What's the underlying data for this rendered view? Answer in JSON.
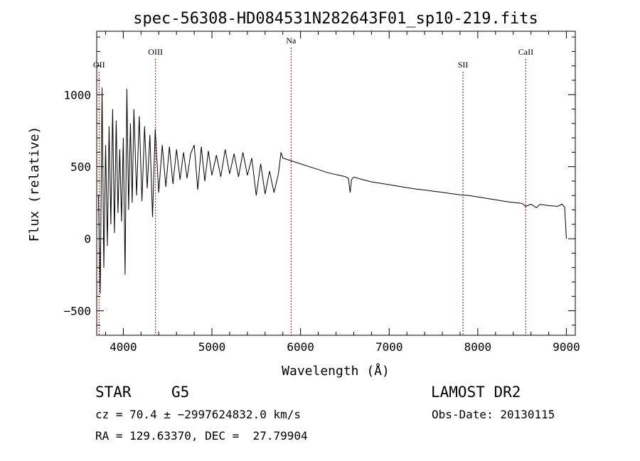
{
  "chart_data": {
    "type": "line",
    "title": "spec-56308-HD084531N282643F01_sp10-219.fits",
    "xlabel": "Wavelength (Å)",
    "ylabel": "Flux (relative)",
    "xlim": [
      3700,
      9100
    ],
    "ylim": [
      -670,
      1440
    ],
    "x_ticks": [
      4000,
      5000,
      6000,
      7000,
      8000,
      9000
    ],
    "y_ticks": [
      -500,
      0,
      500,
      1000
    ],
    "grid": false,
    "series_color": "#000000",
    "line_color": "#aa0000",
    "lines": [
      {
        "label": "OII",
        "x": 3727
      },
      {
        "label": "OIII",
        "x": 4363
      },
      {
        "label": "Na",
        "x": 5893
      },
      {
        "label": "SII",
        "x": 7833
      },
      {
        "label": "CaII",
        "x": 8542
      }
    ],
    "spectrum": [
      [
        3720,
        300
      ],
      [
        3740,
        -380
      ],
      [
        3760,
        1050
      ],
      [
        3780,
        -200
      ],
      [
        3800,
        650
      ],
      [
        3820,
        -50
      ],
      [
        3840,
        780
      ],
      [
        3860,
        100
      ],
      [
        3880,
        900
      ],
      [
        3900,
        40
      ],
      [
        3920,
        820
      ],
      [
        3940,
        180
      ],
      [
        3960,
        620
      ],
      [
        3980,
        120
      ],
      [
        4000,
        700
      ],
      [
        4020,
        -250
      ],
      [
        4040,
        1040
      ],
      [
        4060,
        200
      ],
      [
        4080,
        800
      ],
      [
        4100,
        250
      ],
      [
        4120,
        900
      ],
      [
        4150,
        300
      ],
      [
        4180,
        850
      ],
      [
        4210,
        260
      ],
      [
        4240,
        780
      ],
      [
        4270,
        350
      ],
      [
        4300,
        720
      ],
      [
        4330,
        150
      ],
      [
        4360,
        760
      ],
      [
        4400,
        320
      ],
      [
        4440,
        650
      ],
      [
        4480,
        360
      ],
      [
        4520,
        640
      ],
      [
        4560,
        380
      ],
      [
        4600,
        620
      ],
      [
        4640,
        410
      ],
      [
        4680,
        600
      ],
      [
        4720,
        420
      ],
      [
        4760,
        590
      ],
      [
        4800,
        650
      ],
      [
        4840,
        340
      ],
      [
        4880,
        640
      ],
      [
        4920,
        400
      ],
      [
        4960,
        610
      ],
      [
        5000,
        440
      ],
      [
        5050,
        580
      ],
      [
        5100,
        430
      ],
      [
        5150,
        620
      ],
      [
        5200,
        450
      ],
      [
        5250,
        590
      ],
      [
        5300,
        430
      ],
      [
        5350,
        600
      ],
      [
        5400,
        440
      ],
      [
        5450,
        560
      ],
      [
        5500,
        300
      ],
      [
        5550,
        520
      ],
      [
        5600,
        310
      ],
      [
        5650,
        470
      ],
      [
        5700,
        320
      ],
      [
        5750,
        450
      ],
      [
        5780,
        600
      ],
      [
        5800,
        560
      ],
      [
        5900,
        540
      ],
      [
        6000,
        520
      ],
      [
        6100,
        500
      ],
      [
        6200,
        480
      ],
      [
        6300,
        460
      ],
      [
        6400,
        445
      ],
      [
        6500,
        432
      ],
      [
        6540,
        420
      ],
      [
        6560,
        320
      ],
      [
        6575,
        410
      ],
      [
        6600,
        428
      ],
      [
        6700,
        410
      ],
      [
        6800,
        395
      ],
      [
        6900,
        385
      ],
      [
        7000,
        375
      ],
      [
        7100,
        365
      ],
      [
        7200,
        355
      ],
      [
        7300,
        345
      ],
      [
        7400,
        338
      ],
      [
        7500,
        330
      ],
      [
        7600,
        322
      ],
      [
        7700,
        313
      ],
      [
        7800,
        305
      ],
      [
        7900,
        300
      ],
      [
        8000,
        290
      ],
      [
        8100,
        280
      ],
      [
        8200,
        270
      ],
      [
        8300,
        260
      ],
      [
        8400,
        252
      ],
      [
        8500,
        245
      ],
      [
        8540,
        225
      ],
      [
        8600,
        240
      ],
      [
        8662,
        215
      ],
      [
        8700,
        238
      ],
      [
        8800,
        230
      ],
      [
        8900,
        225
      ],
      [
        8950,
        240
      ],
      [
        8980,
        220
      ],
      [
        9000,
        0
      ]
    ]
  },
  "info": {
    "object_class": "STAR",
    "subclass": "G5",
    "survey": "LAMOST DR2",
    "redshift_line": "cz = 70.4 ± −2997624832.0 km/s",
    "obs_date": "Obs-Date: 20130115",
    "coords": "RA = 129.63370, DEC =  27.79904"
  }
}
